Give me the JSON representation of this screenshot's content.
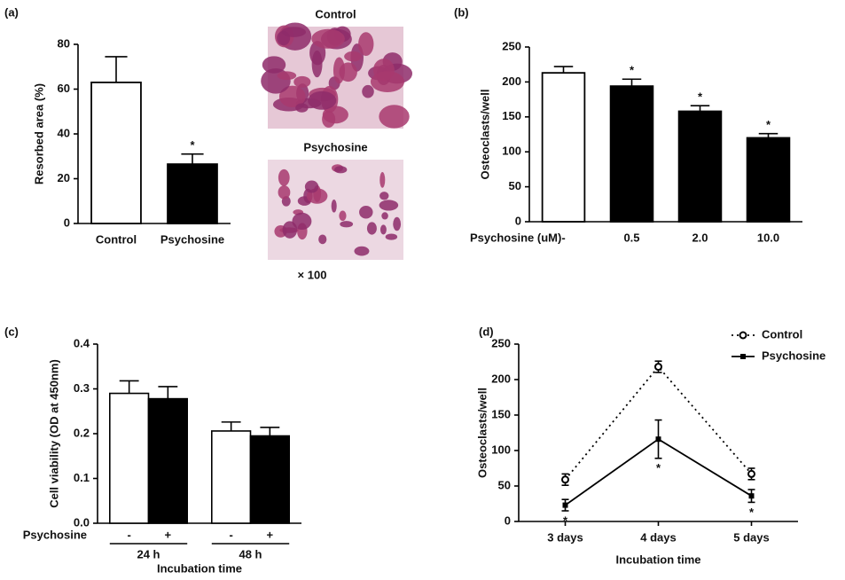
{
  "chart_data": [
    {
      "type": "bar",
      "label": "(a)",
      "ylabel": "Resorbed area (%)",
      "categories": [
        "Control",
        "Psychosine"
      ],
      "values": [
        63,
        26.5
      ],
      "errors": [
        11.5,
        4.5
      ],
      "colors": [
        "#ffffff",
        "#000000"
      ],
      "significance": [
        null,
        "*"
      ],
      "ylim": [
        0,
        80
      ],
      "yticks": [
        0,
        20,
        40,
        60,
        80
      ],
      "image_titles": [
        "Control",
        "Psychosine"
      ],
      "magnification": "× 100"
    },
    {
      "type": "bar",
      "label": "(b)",
      "ylabel": "Osteoclasts/well",
      "xlabel": "Psychosine (uM)",
      "categories": [
        "-",
        "0.5",
        "2.0",
        "10.0"
      ],
      "values": [
        213,
        194,
        158,
        120
      ],
      "errors": [
        9,
        10,
        8,
        6
      ],
      "colors": [
        "#ffffff",
        "#000000",
        "#000000",
        "#000000"
      ],
      "significance": [
        null,
        "*",
        "*",
        "*"
      ],
      "ylim": [
        0,
        250
      ],
      "yticks": [
        0,
        50,
        100,
        150,
        200,
        250
      ]
    },
    {
      "type": "bar",
      "label": "(c)",
      "ylabel": "Cell viability (OD at 450nm)",
      "xlabel": "Incubation time",
      "row_label": "Psychosine",
      "categories": [
        "24 h",
        "48 h"
      ],
      "series": [
        {
          "name": "-",
          "color": "#ffffff",
          "values": [
            0.29,
            0.206
          ],
          "errors": [
            0.028,
            0.02
          ]
        },
        {
          "name": "+",
          "color": "#000000",
          "values": [
            0.278,
            0.195
          ],
          "errors": [
            0.027,
            0.019
          ]
        }
      ],
      "ylim": [
        0,
        0.4
      ],
      "yticks": [
        {
          "value": 0,
          "label": "0.0"
        },
        0.1,
        0.2,
        0.3,
        0.4
      ]
    },
    {
      "type": "line",
      "label": "(d)",
      "ylabel": "Osteoclasts/well",
      "xlabel": "Incubation time",
      "categories": [
        "3 days",
        "4 days",
        "5 days"
      ],
      "series": [
        {
          "name": "Control",
          "color": "#000000",
          "linestyle": "dotted",
          "marker": "open-circle",
          "values": [
            59,
            218,
            67
          ],
          "errors": [
            8,
            8,
            8
          ]
        },
        {
          "name": "Psychosine",
          "color": "#000000",
          "linestyle": "solid",
          "marker": "filled-square",
          "values": [
            23,
            116,
            36
          ],
          "errors": [
            8,
            27,
            9
          ],
          "significance": [
            "*",
            "*",
            "*"
          ]
        }
      ],
      "ylim": [
        0,
        250
      ],
      "yticks": [
        0,
        50,
        100,
        150,
        200,
        250
      ],
      "legend": "top-right"
    }
  ]
}
